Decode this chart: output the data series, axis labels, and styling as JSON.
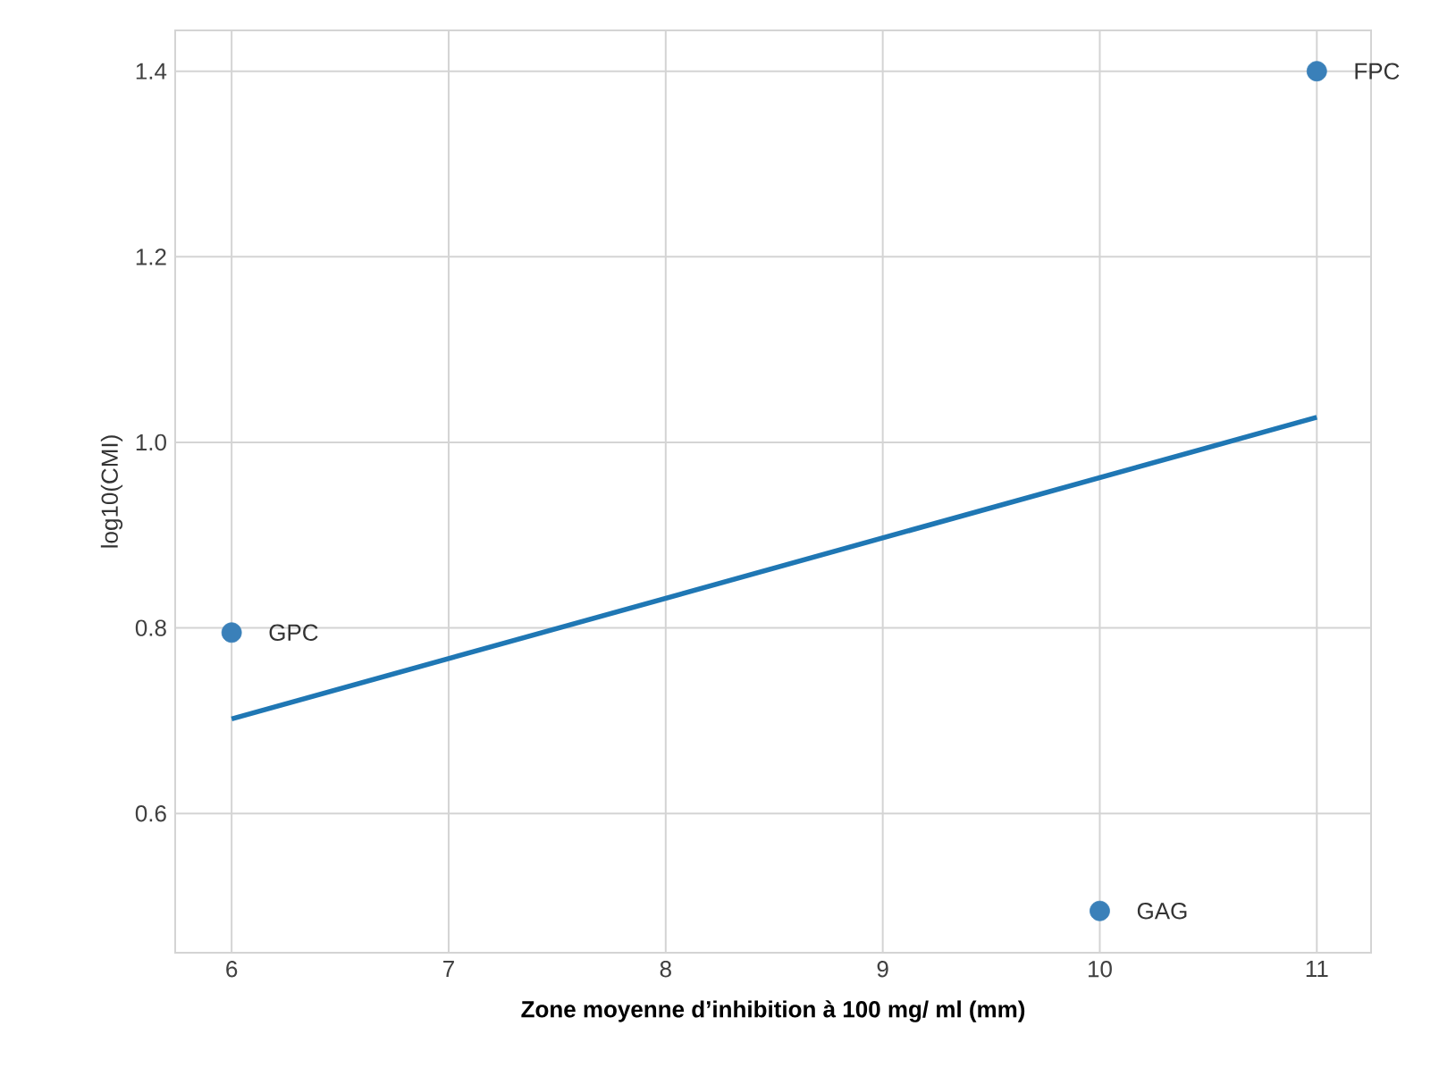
{
  "chart_data": {
    "type": "scatter",
    "xlabel": "Zone moyenne d’inhibition à 100 mg/ ml (mm)",
    "ylabel": "log10(CMI)",
    "xlim": [
      5.74,
      11.25
    ],
    "ylim": [
      0.45,
      1.444
    ],
    "xticks": [
      6,
      7,
      8,
      9,
      10,
      11
    ],
    "yticks": [
      0.6,
      0.8,
      {
        "value": 1.0,
        "label": "1.0"
      },
      1.2,
      1.4
    ],
    "grid": true,
    "series": [
      {
        "color": "#3a80b9",
        "marker": "circle",
        "x": [
          6,
          10,
          11
        ],
        "values": [
          0.795,
          0.495,
          1.4
        ]
      },
      {
        "type": "line",
        "color": "#1f77b4",
        "marker": "none",
        "x": [
          6,
          11
        ],
        "values": [
          0.702,
          1.027
        ],
        "line_style": "solid"
      }
    ],
    "annotations": [
      {
        "text": "GPC",
        "x": 6,
        "y": 0.795
      },
      {
        "text": "GAG",
        "x": 10,
        "y": 0.495
      },
      {
        "text": "FPC",
        "x": 11,
        "y": 1.4
      }
    ]
  }
}
